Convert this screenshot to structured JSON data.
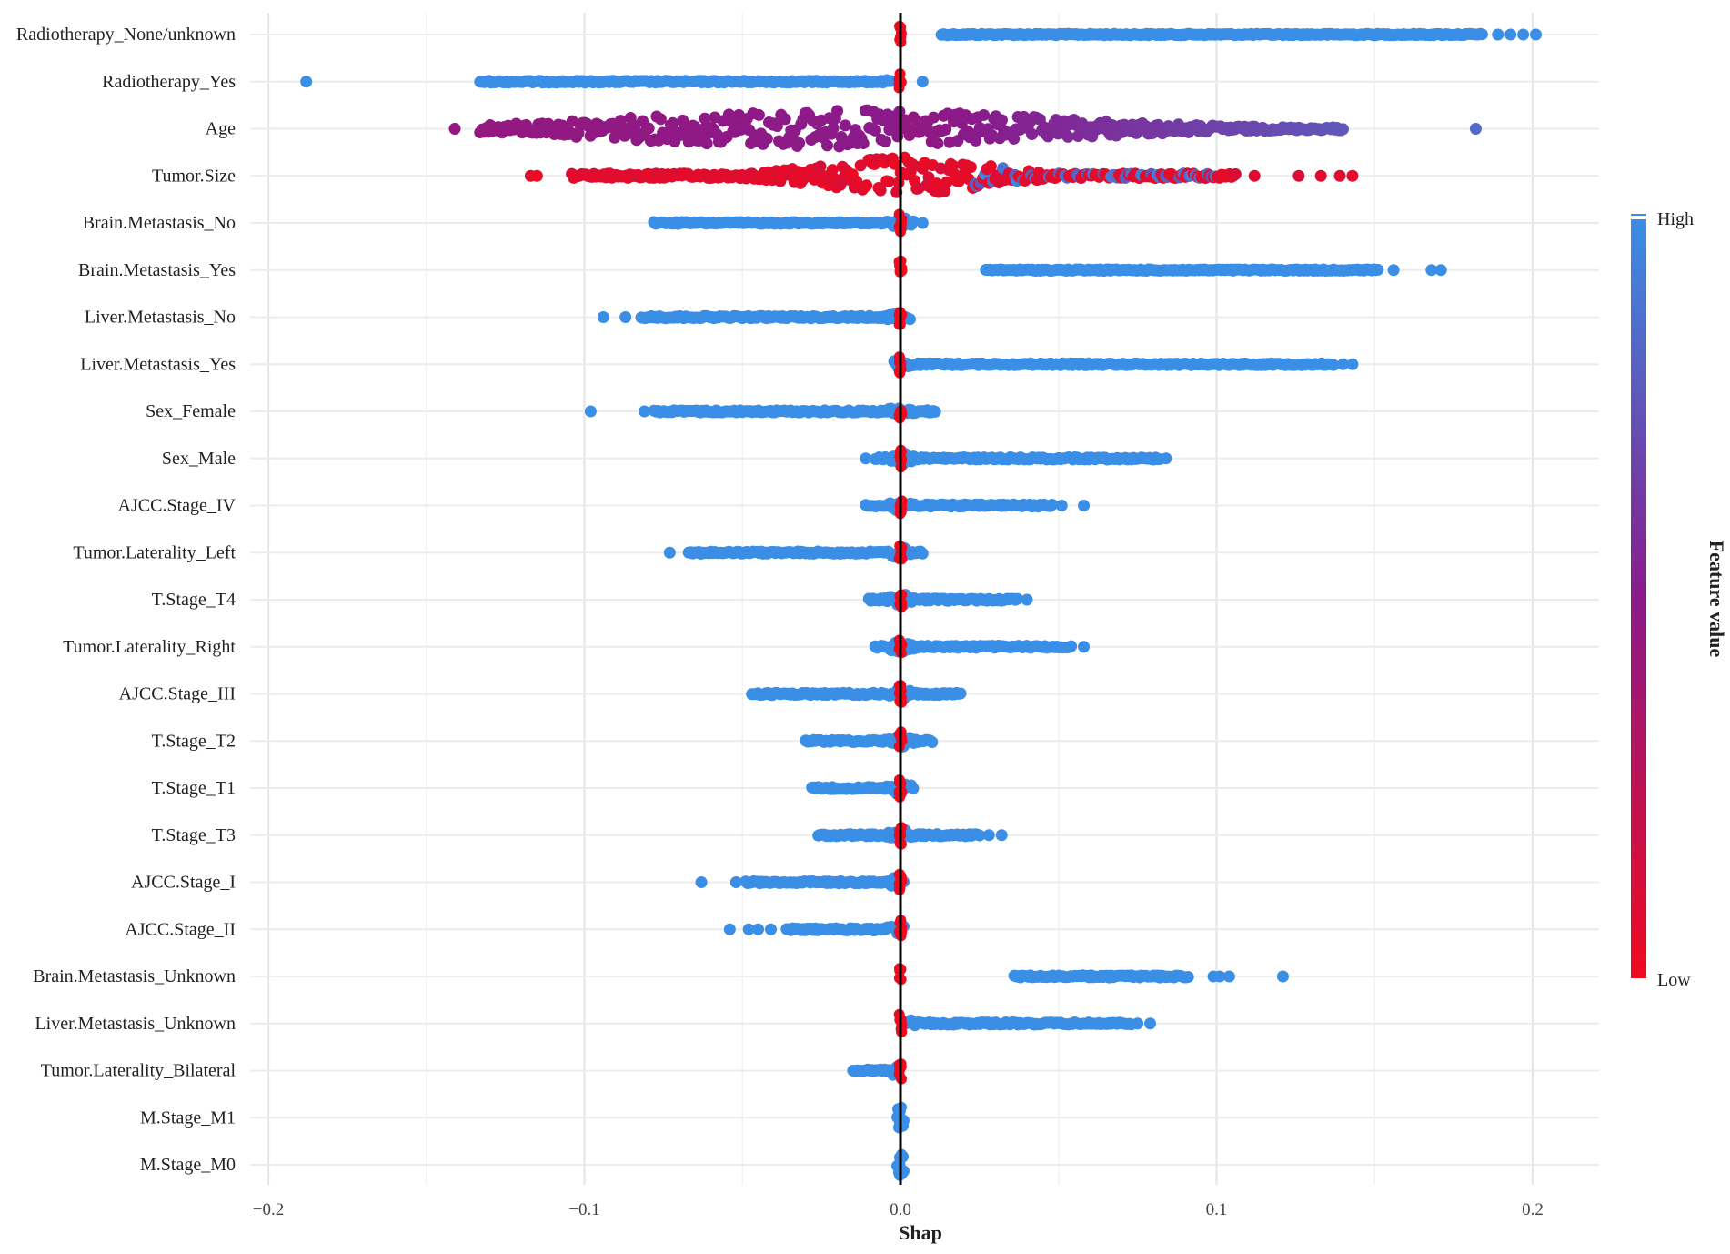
{
  "chart_data": {
    "type": "scatter",
    "subtype": "shap-beeswarm",
    "title": "",
    "xlabel": "Shap",
    "ylabel": "",
    "xlim": [
      -0.2,
      0.2
    ],
    "x_ticks": [
      -0.2,
      -0.1,
      0.0,
      0.1,
      0.2
    ],
    "x_tick_labels": [
      "−0.2",
      "−0.1",
      "0.0",
      "0.1",
      "0.2"
    ],
    "grid": true,
    "zero_line": true,
    "colorbar": {
      "title": "Feature value",
      "high_label": "High",
      "low_label": "Low",
      "high_color": "#3a8ee6",
      "mid_color": "#8a1a8a",
      "low_color": "#f00a1e",
      "placement": "right"
    },
    "features": [
      {
        "name": "Radiotherapy_None/unknown",
        "min": 0.0,
        "max": 0.201,
        "spread": 0.2,
        "high_side": "positive",
        "segments": [
          [
            0.013,
            0.184
          ]
        ],
        "outliers": [
          0.189,
          0.193,
          0.197,
          0.201
        ],
        "low_at_zero": true
      },
      {
        "name": "Radiotherapy_Yes",
        "min": -0.188,
        "max": 0.007,
        "spread": 0.25,
        "high_side": "negative",
        "segments": [
          [
            -0.133,
            -0.124
          ],
          [
            -0.124,
            -0.003
          ]
        ],
        "outliers": [
          -0.188,
          0.007
        ],
        "low_at_zero": true
      },
      {
        "name": "Age",
        "min": -0.141,
        "max": 0.182,
        "spread": 0.9,
        "high_side": "mixed",
        "gradient": "age",
        "segments": [
          [
            -0.133,
            0.14
          ]
        ],
        "outliers": [
          -0.141,
          0.182
        ],
        "low_at_zero": false
      },
      {
        "name": "Tumor.Size",
        "min": -0.117,
        "max": 0.143,
        "spread": 0.9,
        "high_side": "mixed",
        "gradient": "size",
        "segments": [
          [
            -0.104,
            0.106
          ]
        ],
        "outliers": [
          -0.117,
          -0.115,
          0.112,
          0.126,
          0.133,
          0.139,
          0.143
        ],
        "low_at_zero": false
      },
      {
        "name": "Brain.Metastasis_No",
        "min": -0.078,
        "max": 0.007,
        "spread": 0.25,
        "high_side": "negative",
        "segments": [
          [
            -0.078,
            0.004
          ]
        ],
        "outliers": [
          0.007
        ],
        "low_at_zero": true
      },
      {
        "name": "Brain.Metastasis_Yes",
        "min": 0.0,
        "max": 0.171,
        "spread": 0.2,
        "high_side": "positive",
        "segments": [
          [
            0.027,
            0.151
          ]
        ],
        "outliers": [
          0.156,
          0.168,
          0.171
        ],
        "low_at_zero": true
      },
      {
        "name": "Liver.Metastasis_No",
        "min": -0.094,
        "max": 0.004,
        "spread": 0.3,
        "high_side": "negative",
        "segments": [
          [
            -0.082,
            0.003
          ]
        ],
        "outliers": [
          -0.094,
          -0.087
        ],
        "low_at_zero": true
      },
      {
        "name": "Liver.Metastasis_Yes",
        "min": -0.002,
        "max": 0.143,
        "spread": 0.25,
        "high_side": "positive",
        "segments": [
          [
            -0.002,
            0.137
          ]
        ],
        "outliers": [
          0.14,
          0.143
        ],
        "low_at_zero": true
      },
      {
        "name": "Sex_Female",
        "min": -0.098,
        "max": 0.011,
        "spread": 0.3,
        "high_side": "negative",
        "segments": [
          [
            -0.078,
            0.011
          ]
        ],
        "outliers": [
          -0.098,
          -0.081
        ],
        "low_at_zero": true
      },
      {
        "name": "Sex_Male",
        "min": -0.011,
        "max": 0.084,
        "spread": 0.3,
        "high_side": "positive",
        "segments": [
          [
            -0.008,
            0.082
          ]
        ],
        "outliers": [
          -0.011,
          0.084
        ],
        "low_at_zero": true
      },
      {
        "name": "AJCC.Stage_IV",
        "min": -0.011,
        "max": 0.059,
        "spread": 0.3,
        "high_side": "positive",
        "segments": [
          [
            -0.011,
            0.048
          ]
        ],
        "outliers": [
          0.051,
          0.058
        ],
        "low_at_zero": true
      },
      {
        "name": "Tumor.Laterality_Left",
        "min": -0.073,
        "max": 0.007,
        "spread": 0.3,
        "high_side": "negative",
        "segments": [
          [
            -0.067,
            0.007
          ]
        ],
        "outliers": [
          -0.073
        ],
        "low_at_zero": true
      },
      {
        "name": "T.Stage_T4",
        "min": -0.01,
        "max": 0.04,
        "spread": 0.3,
        "high_side": "positive",
        "segments": [
          [
            -0.01,
            0.037
          ]
        ],
        "outliers": [
          0.04
        ],
        "low_at_zero": true
      },
      {
        "name": "Tumor.Laterality_Right",
        "min": -0.008,
        "max": 0.058,
        "spread": 0.3,
        "high_side": "positive",
        "segments": [
          [
            -0.008,
            0.054
          ]
        ],
        "outliers": [
          0.058
        ],
        "low_at_zero": true
      },
      {
        "name": "AJCC.Stage_III",
        "min": -0.047,
        "max": 0.019,
        "spread": 0.3,
        "high_side": "negative",
        "segments": [
          [
            -0.047,
            0.019
          ]
        ],
        "outliers": [],
        "low_at_zero": true
      },
      {
        "name": "T.Stage_T2",
        "min": -0.03,
        "max": 0.01,
        "spread": 0.3,
        "high_side": "negative",
        "segments": [
          [
            -0.03,
            0.01
          ]
        ],
        "outliers": [],
        "low_at_zero": true
      },
      {
        "name": "T.Stage_T1",
        "min": -0.028,
        "max": 0.004,
        "spread": 0.3,
        "high_side": "negative",
        "segments": [
          [
            -0.028,
            0.004
          ]
        ],
        "outliers": [],
        "low_at_zero": true
      },
      {
        "name": "T.Stage_T3",
        "min": -0.026,
        "max": 0.032,
        "spread": 0.3,
        "high_side": "positive",
        "segments": [
          [
            -0.026,
            0.025
          ]
        ],
        "outliers": [
          0.028,
          0.032
        ],
        "low_at_zero": true
      },
      {
        "name": "AJCC.Stage_I",
        "min": -0.063,
        "max": 0.001,
        "spread": 0.3,
        "high_side": "negative",
        "segments": [
          [
            -0.049,
            0.001
          ]
        ],
        "outliers": [
          -0.063,
          -0.052
        ],
        "low_at_zero": true
      },
      {
        "name": "AJCC.Stage_II",
        "min": -0.054,
        "max": 0.001,
        "spread": 0.3,
        "high_side": "negative",
        "segments": [
          [
            -0.036,
            0.001
          ]
        ],
        "outliers": [
          -0.054,
          -0.048,
          -0.045,
          -0.041
        ],
        "low_at_zero": true
      },
      {
        "name": "Brain.Metastasis_Unknown",
        "min": 0.0,
        "max": 0.121,
        "spread": 0.3,
        "high_side": "positive",
        "segments": [
          [
            0.036,
            0.091
          ]
        ],
        "outliers": [
          0.099,
          0.101,
          0.104,
          0.121
        ],
        "low_at_zero": true
      },
      {
        "name": "Liver.Metastasis_Unknown",
        "min": 0.0,
        "max": 0.079,
        "spread": 0.3,
        "high_side": "positive",
        "segments": [
          [
            0.002,
            0.073
          ]
        ],
        "outliers": [
          0.075,
          0.079
        ],
        "low_at_zero": true
      },
      {
        "name": "Tumor.Laterality_Bilateral",
        "min": -0.015,
        "max": 0.0,
        "spread": 0.3,
        "high_side": "negative",
        "segments": [
          [
            -0.015,
            -0.001
          ]
        ],
        "outliers": [],
        "low_at_zero": true
      },
      {
        "name": "M.Stage_M1",
        "min": -0.001,
        "max": 0.001,
        "spread": 0.5,
        "high_side": "positive",
        "segments": [
          [
            -0.001,
            0.001
          ]
        ],
        "outliers": [],
        "low_at_zero": false
      },
      {
        "name": "M.Stage_M0",
        "min": -0.001,
        "max": 0.001,
        "spread": 0.5,
        "high_side": "positive",
        "segments": [
          [
            -0.001,
            0.001
          ]
        ],
        "outliers": [],
        "low_at_zero": false
      }
    ]
  }
}
